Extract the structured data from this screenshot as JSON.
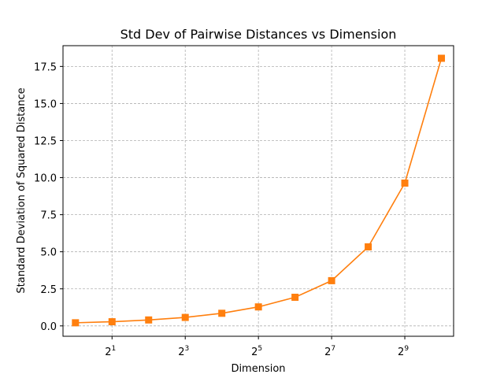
{
  "chart_data": {
    "type": "line",
    "title": "Std Dev of Pairwise Distances vs Dimension",
    "xlabel": "Dimension",
    "ylabel": "Standard Deviation of Squared Distance",
    "x_scale": "log2",
    "xlim": [
      0.79,
      1290
    ],
    "ylim": [
      -0.7,
      18.9
    ],
    "grid": true,
    "x": [
      1,
      2,
      4,
      8,
      16,
      32,
      64,
      128,
      256,
      512,
      1024
    ],
    "series": [
      {
        "values": [
          0.21,
          0.28,
          0.4,
          0.57,
          0.85,
          1.28,
          1.93,
          3.05,
          5.33,
          9.63,
          18.05
        ],
        "color": "#ff7f0e",
        "marker": "square"
      }
    ],
    "xticks": [
      {
        "base": "2",
        "exp": "1",
        "value": 2
      },
      {
        "base": "2",
        "exp": "3",
        "value": 8
      },
      {
        "base": "2",
        "exp": "5",
        "value": 32
      },
      {
        "base": "2",
        "exp": "7",
        "value": 128
      },
      {
        "base": "2",
        "exp": "9",
        "value": 512
      }
    ],
    "yticks": [
      {
        "label": "0.0",
        "value": 0.0
      },
      {
        "label": "2.5",
        "value": 2.5
      },
      {
        "label": "5.0",
        "value": 5.0
      },
      {
        "label": "7.5",
        "value": 7.5
      },
      {
        "label": "10.0",
        "value": 10.0
      },
      {
        "label": "12.5",
        "value": 12.5
      },
      {
        "label": "15.0",
        "value": 15.0
      },
      {
        "label": "17.5",
        "value": 17.5
      }
    ]
  }
}
